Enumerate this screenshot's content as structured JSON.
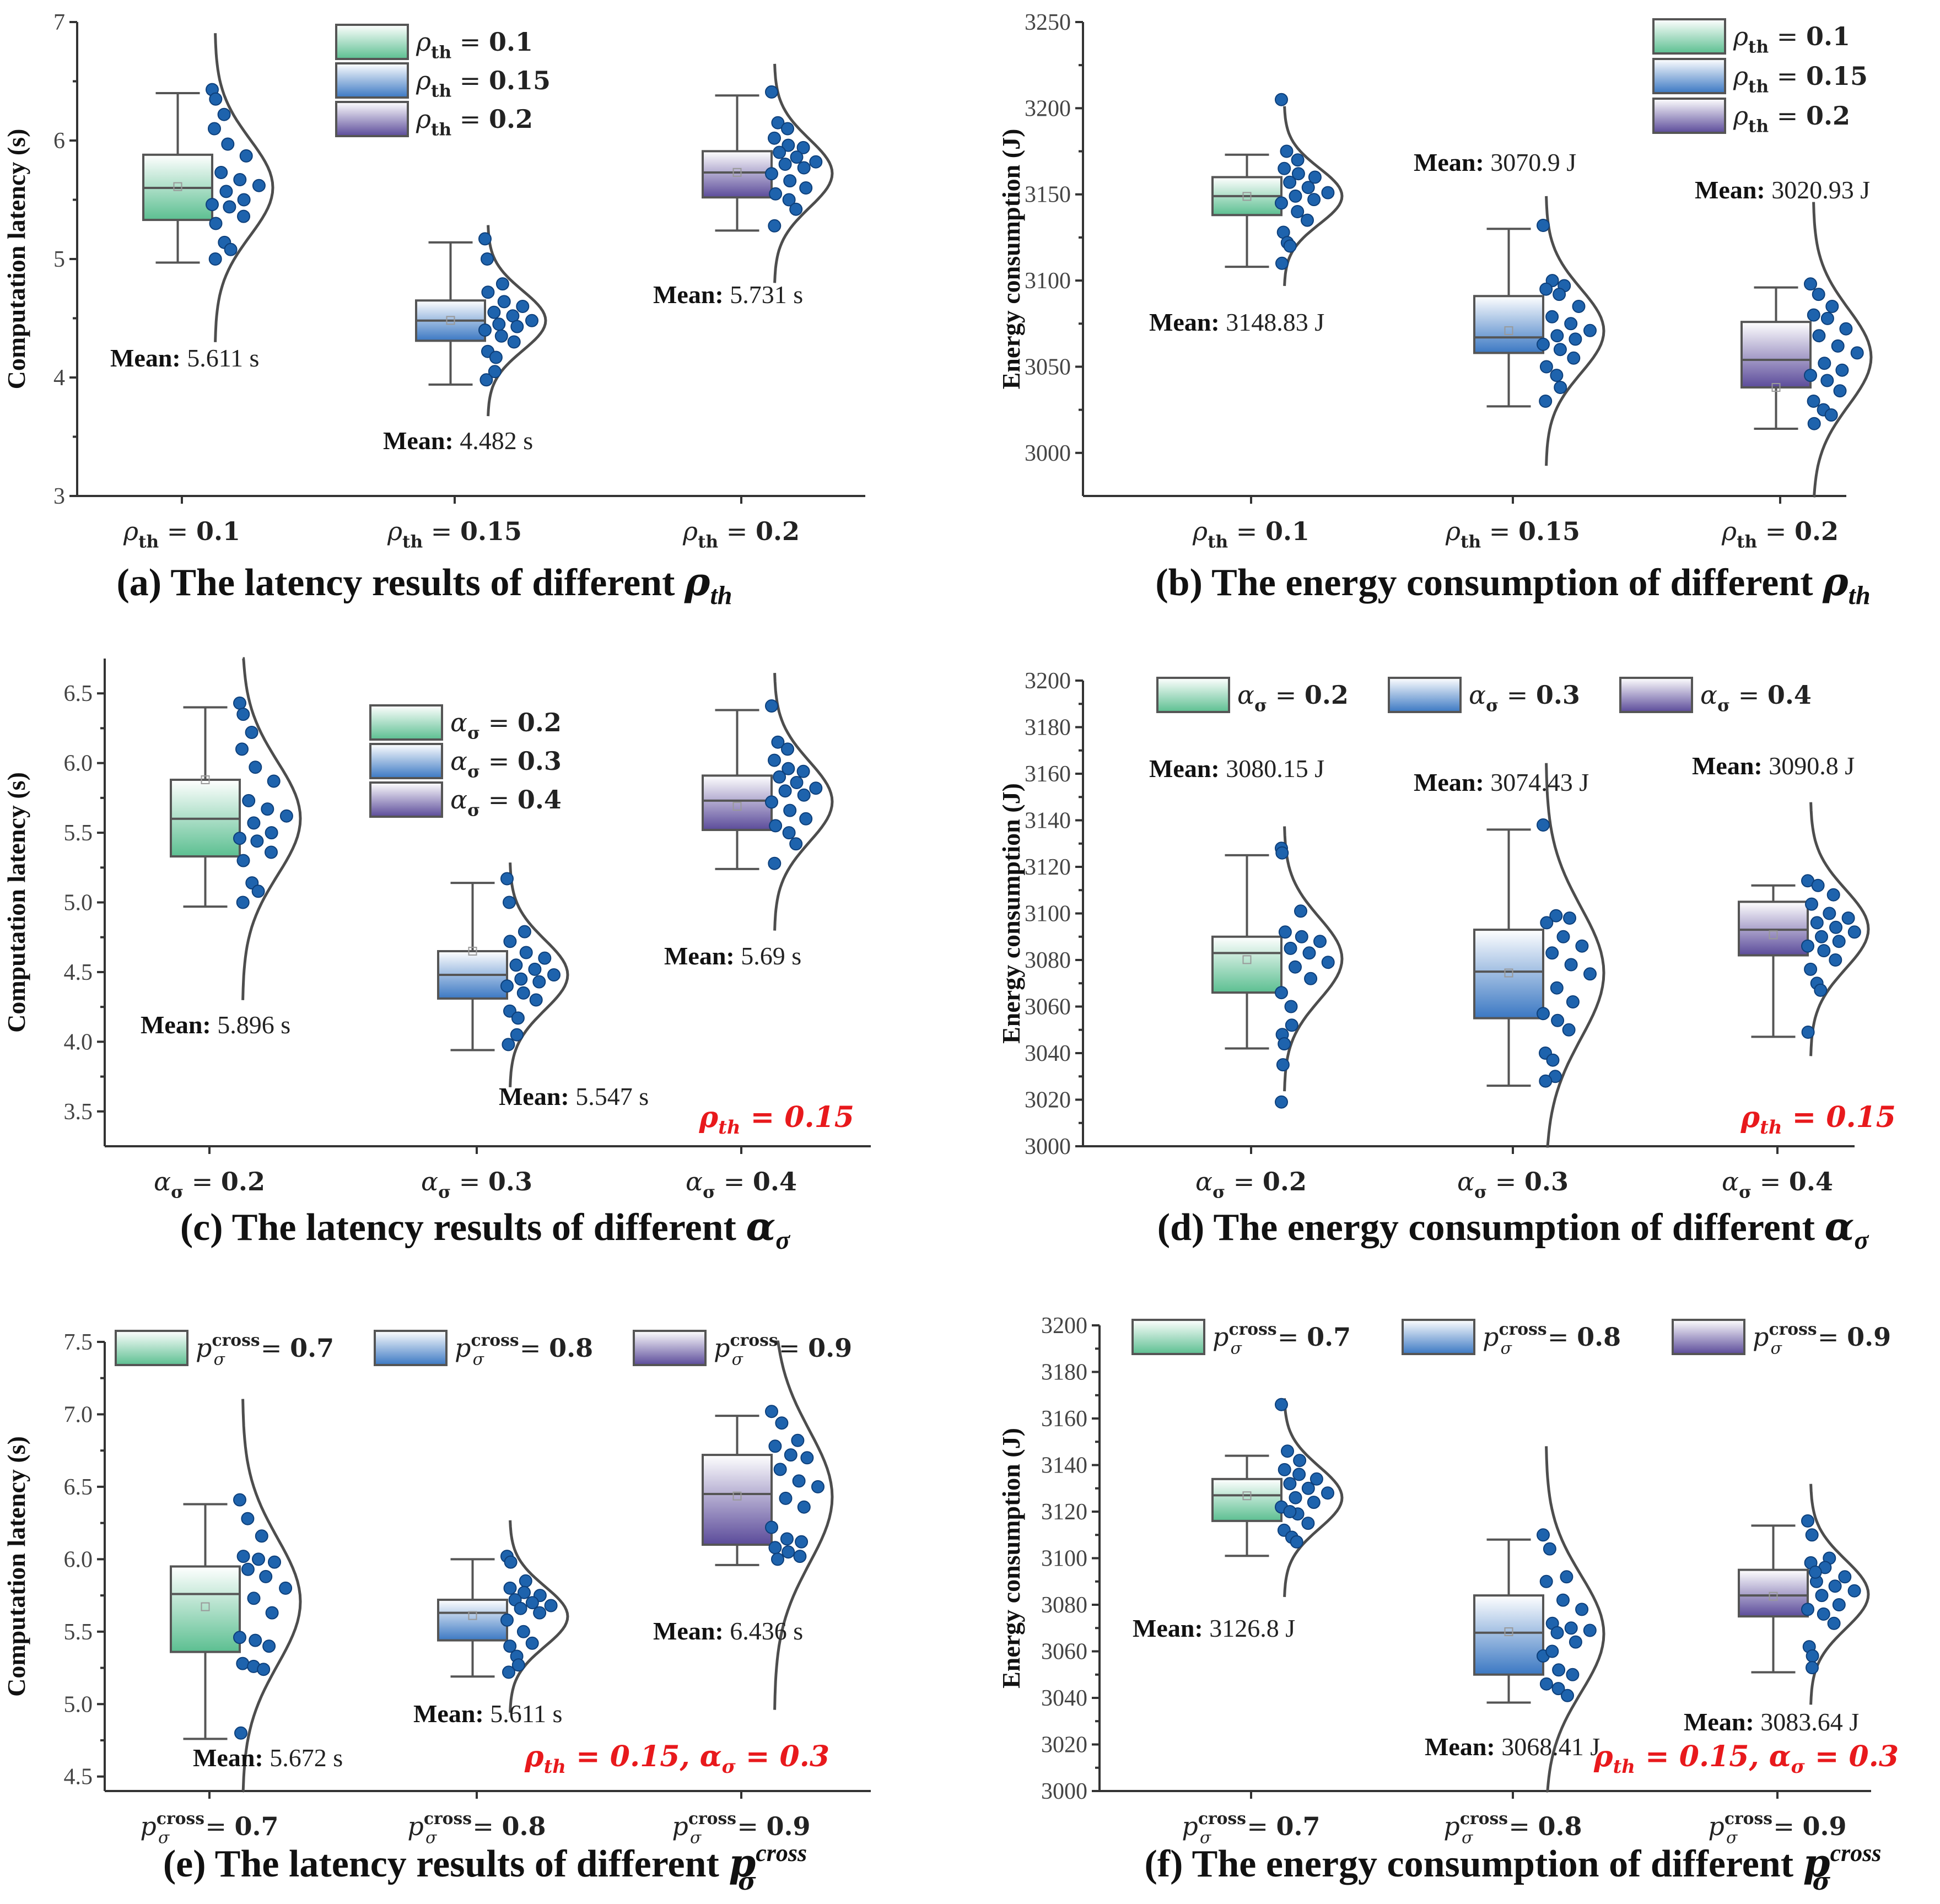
{
  "colors": {
    "green": "#5cbf91",
    "blue": "#3b78c3",
    "purple": "#5b4b9a",
    "dot": "#1e63ad",
    "annotation": "#e8191c"
  },
  "chart_data": [
    {
      "id": "a",
      "type": "box",
      "caption_prefix": "(a) The latency results of different ",
      "caption_math": "ρ",
      "caption_sub": "th",
      "ylabel": "Computation latency (s)",
      "ylim": [
        3,
        7
      ],
      "yticks": [
        3,
        4,
        5,
        6,
        7
      ],
      "ytick_labels": [
        "3",
        "4",
        "5",
        "6",
        "7"
      ],
      "categories": [
        {
          "sym": "ρ",
          "sub": "th",
          "sup": "",
          "value": "0.1",
          "color": "green"
        },
        {
          "sym": "ρ",
          "sub": "th",
          "sup": "",
          "value": "0.15",
          "color": "blue"
        },
        {
          "sym": "ρ",
          "sub": "th",
          "sup": "",
          "value": "0.2",
          "color": "purple"
        }
      ],
      "series": [
        {
          "name": "ρth = 0.1",
          "q1": 5.33,
          "median": 5.6,
          "q3": 5.88,
          "min": 4.97,
          "max": 6.4,
          "mean": 5.611,
          "points": [
            6.43,
            6.35,
            6.22,
            6.1,
            5.97,
            5.87,
            5.73,
            5.67,
            5.62,
            5.57,
            5.5,
            5.46,
            5.44,
            5.36,
            5.3,
            5.14,
            5.08,
            5.0
          ],
          "mean_text": "5.611 s"
        },
        {
          "name": "ρth = 0.15",
          "q1": 4.31,
          "median": 4.48,
          "q3": 4.65,
          "min": 3.94,
          "max": 5.14,
          "mean": 4.482,
          "points": [
            5.17,
            5.0,
            4.79,
            4.72,
            4.64,
            4.6,
            4.55,
            4.52,
            4.48,
            4.45,
            4.43,
            4.4,
            4.35,
            4.3,
            4.22,
            4.17,
            4.05,
            3.98
          ],
          "mean_text": "4.482 s"
        },
        {
          "name": "ρth = 0.2",
          "q1": 5.52,
          "median": 5.73,
          "q3": 5.91,
          "min": 5.24,
          "max": 6.38,
          "mean": 5.731,
          "points": [
            6.41,
            6.15,
            6.1,
            6.02,
            5.96,
            5.94,
            5.9,
            5.86,
            5.82,
            5.8,
            5.77,
            5.72,
            5.66,
            5.6,
            5.55,
            5.5,
            5.42,
            5.28
          ],
          "mean_text": "5.731 s"
        }
      ],
      "legend": [
        {
          "sym": "ρ",
          "sub": "th",
          "sup": "",
          "value": "0.1",
          "color": "green"
        },
        {
          "sym": "ρ",
          "sub": "th",
          "sup": "",
          "value": "0.15",
          "color": "blue"
        },
        {
          "sym": "ρ",
          "sub": "th",
          "sup": "",
          "value": "0.2",
          "color": "purple"
        }
      ],
      "annotation": ""
    },
    {
      "id": "b",
      "type": "box",
      "caption_prefix": "(b) The energy consumption of different ",
      "caption_math": "ρ",
      "caption_sub": "th",
      "ylabel": "Energy consumption (J)",
      "ylim": [
        2975,
        3250
      ],
      "yticks": [
        3000,
        3050,
        3100,
        3150,
        3200,
        3250
      ],
      "ytick_labels": [
        "3000",
        "3050",
        "3100",
        "3150",
        "3200",
        "3250"
      ],
      "categories": [
        {
          "sym": "ρ",
          "sub": "th",
          "sup": "",
          "value": "0.1",
          "color": "green"
        },
        {
          "sym": "ρ",
          "sub": "th",
          "sup": "",
          "value": "0.15",
          "color": "blue"
        },
        {
          "sym": "ρ",
          "sub": "th",
          "sup": "",
          "value": "0.2",
          "color": "purple"
        }
      ],
      "series": [
        {
          "name": "ρth = 0.1",
          "q1": 3138,
          "median": 3149,
          "q3": 3160,
          "min": 3108,
          "max": 3173,
          "mean": 3148.83,
          "points": [
            3205,
            3175,
            3170,
            3165,
            3162,
            3160,
            3157,
            3154,
            3151,
            3149,
            3147,
            3145,
            3140,
            3135,
            3128,
            3122,
            3120,
            3110
          ],
          "mean_text": "3148.83 J"
        },
        {
          "name": "ρth = 0.15",
          "q1": 3058,
          "median": 3067,
          "q3": 3091,
          "min": 3027,
          "max": 3130,
          "mean": 3070.9,
          "points": [
            3132,
            3100,
            3097,
            3095,
            3092,
            3085,
            3079,
            3075,
            3071,
            3068,
            3066,
            3063,
            3060,
            3055,
            3050,
            3045,
            3038,
            3030
          ],
          "mean_text": "3070.9 J"
        },
        {
          "name": "ρth = 0.2",
          "q1": 3038,
          "median": 3054,
          "q3": 3076,
          "min": 3014,
          "max": 3096,
          "mean": 3020.93,
          "points": [
            3098,
            3092,
            3085,
            3080,
            3078,
            3072,
            3068,
            3062,
            3058,
            3052,
            3048,
            3045,
            3042,
            3036,
            3030,
            3025,
            3022,
            3017
          ],
          "mean_text": "3020.93 J"
        }
      ],
      "legend": [
        {
          "sym": "ρ",
          "sub": "th",
          "sup": "",
          "value": "0.1",
          "color": "green"
        },
        {
          "sym": "ρ",
          "sub": "th",
          "sup": "",
          "value": "0.15",
          "color": "blue"
        },
        {
          "sym": "ρ",
          "sub": "th",
          "sup": "",
          "value": "0.2",
          "color": "purple"
        }
      ],
      "annotation": ""
    },
    {
      "id": "c",
      "type": "box",
      "caption_prefix": "(c) The latency results of different ",
      "caption_math": "α",
      "caption_sub": "σ",
      "ylabel": "Computation latency (s)",
      "ylim": [
        3.25,
        6.75
      ],
      "yticks": [
        3.5,
        4.0,
        4.5,
        5.0,
        5.5,
        6.0,
        6.5
      ],
      "ytick_labels": [
        "3.5",
        "4.0",
        "4.5",
        "5.0",
        "5.5",
        "6.0",
        "6.5"
      ],
      "categories": [
        {
          "sym": "α",
          "sub": "σ",
          "sup": "",
          "value": "0.2",
          "color": "green"
        },
        {
          "sym": "α",
          "sub": "σ",
          "sup": "",
          "value": "0.3",
          "color": "blue"
        },
        {
          "sym": "α",
          "sub": "σ",
          "sup": "",
          "value": "0.4",
          "color": "purple"
        }
      ],
      "series": [
        {
          "name": "ασ = 0.2",
          "q1": 5.33,
          "median": 5.6,
          "q3": 5.88,
          "min": 4.97,
          "max": 6.4,
          "mean": 5.896,
          "points": [
            6.43,
            6.35,
            6.22,
            6.1,
            5.97,
            5.87,
            5.73,
            5.67,
            5.62,
            5.57,
            5.5,
            5.46,
            5.44,
            5.36,
            5.3,
            5.14,
            5.08,
            5.0
          ],
          "mean_text": "5.896 s"
        },
        {
          "name": "ασ = 0.3",
          "q1": 4.31,
          "median": 4.48,
          "q3": 4.65,
          "min": 3.94,
          "max": 5.14,
          "mean": 5.547,
          "points": [
            5.17,
            5.0,
            4.79,
            4.72,
            4.64,
            4.6,
            4.55,
            4.52,
            4.48,
            4.45,
            4.43,
            4.4,
            4.35,
            4.3,
            4.22,
            4.17,
            4.05,
            3.98
          ],
          "mean_text": "5.547 s"
        },
        {
          "name": "ασ = 0.4",
          "q1": 5.52,
          "median": 5.73,
          "q3": 5.91,
          "min": 5.24,
          "max": 6.38,
          "mean": 5.69,
          "points": [
            6.41,
            6.15,
            6.1,
            6.02,
            5.96,
            5.94,
            5.9,
            5.86,
            5.82,
            5.8,
            5.77,
            5.72,
            5.66,
            5.6,
            5.55,
            5.5,
            5.42,
            5.28
          ],
          "mean_text": "5.69 s"
        }
      ],
      "legend": [
        {
          "sym": "α",
          "sub": "σ",
          "sup": "",
          "value": "0.2",
          "color": "green"
        },
        {
          "sym": "α",
          "sub": "σ",
          "sup": "",
          "value": "0.3",
          "color": "blue"
        },
        {
          "sym": "α",
          "sub": "σ",
          "sup": "",
          "value": "0.4",
          "color": "purple"
        }
      ],
      "annotation": "ρ<sub>th</sub> = 0.15"
    },
    {
      "id": "d",
      "type": "box",
      "caption_prefix": "(d) The energy consumption of different ",
      "caption_math": "α",
      "caption_sub": "σ",
      "ylabel": "Energy consumption (J)",
      "ylim": [
        3000,
        3200
      ],
      "yticks": [
        3000,
        3020,
        3040,
        3060,
        3080,
        3100,
        3120,
        3140,
        3160,
        3180,
        3200
      ],
      "ytick_labels": [
        "3000",
        "3020",
        "3040",
        "3060",
        "3080",
        "3100",
        "3120",
        "3140",
        "3160",
        "3180",
        "3200"
      ],
      "categories": [
        {
          "sym": "α",
          "sub": "σ",
          "sup": "",
          "value": "0.2",
          "color": "green"
        },
        {
          "sym": "α",
          "sub": "σ",
          "sup": "",
          "value": "0.3",
          "color": "blue"
        },
        {
          "sym": "α",
          "sub": "σ",
          "sup": "",
          "value": "0.4",
          "color": "purple"
        }
      ],
      "series": [
        {
          "name": "ασ = 0.2",
          "q1": 3066,
          "median": 3083,
          "q3": 3090,
          "min": 3042,
          "max": 3125,
          "mean": 3080.15,
          "points": [
            3128,
            3126,
            3101,
            3092,
            3090,
            3088,
            3085,
            3083,
            3079,
            3077,
            3072,
            3066,
            3060,
            3052,
            3048,
            3044,
            3035,
            3019
          ],
          "mean_text": "3080.15 J"
        },
        {
          "name": "ασ = 0.3",
          "q1": 3055,
          "median": 3075,
          "q3": 3093,
          "min": 3026,
          "max": 3136,
          "mean": 3074.43,
          "points": [
            3138,
            3099,
            3098,
            3096,
            3090,
            3086,
            3083,
            3078,
            3074,
            3068,
            3062,
            3057,
            3054,
            3050,
            3040,
            3037,
            3030,
            3028
          ],
          "mean_text": "3074.43 J"
        },
        {
          "name": "ασ = 0.4",
          "q1": 3082,
          "median": 3093,
          "q3": 3105,
          "min": 3047,
          "max": 3112,
          "mean": 3090.8,
          "points": [
            3114,
            3112,
            3108,
            3104,
            3100,
            3098,
            3096,
            3094,
            3092,
            3090,
            3088,
            3086,
            3084,
            3080,
            3076,
            3070,
            3067,
            3049
          ],
          "mean_text": "3090.8 J"
        }
      ],
      "legend": [
        {
          "sym": "α",
          "sub": "σ",
          "sup": "",
          "value": "0.2",
          "color": "green"
        },
        {
          "sym": "α",
          "sub": "σ",
          "sup": "",
          "value": "0.3",
          "color": "blue"
        },
        {
          "sym": "α",
          "sub": "σ",
          "sup": "",
          "value": "0.4",
          "color": "purple"
        }
      ],
      "annotation": "ρ<sub>th</sub> = 0.15"
    },
    {
      "id": "e",
      "type": "box",
      "caption_prefix": "(e) The latency results of different ",
      "caption_math": "p",
      "caption_sub": "σ",
      "caption_sup": "cross",
      "ylabel": "Computation latency (s)",
      "ylim": [
        4.4,
        7.5
      ],
      "yticks": [
        4.5,
        5.0,
        5.5,
        6.0,
        6.5,
        7.0,
        7.5
      ],
      "ytick_labels": [
        "4.5",
        "5.0",
        "5.5",
        "6.0",
        "6.5",
        "7.0",
        "7.5"
      ],
      "categories": [
        {
          "sym": "p",
          "sub": "σ",
          "sup": "cross",
          "value": "0.7",
          "color": "green"
        },
        {
          "sym": "p",
          "sub": "σ",
          "sup": "cross",
          "value": "0.8",
          "color": "blue"
        },
        {
          "sym": "p",
          "sub": "σ",
          "sup": "cross",
          "value": "0.9",
          "color": "purple"
        }
      ],
      "series": [
        {
          "name": "pσcross = 0.7",
          "q1": 5.36,
          "median": 5.76,
          "q3": 5.95,
          "min": 4.76,
          "max": 6.38,
          "mean": 5.672,
          "points": [
            6.41,
            6.28,
            6.16,
            6.02,
            6.0,
            5.98,
            5.93,
            5.88,
            5.8,
            5.73,
            5.63,
            5.46,
            5.44,
            5.4,
            5.28,
            5.26,
            5.24,
            4.8
          ],
          "mean_text": "5.672 s"
        },
        {
          "name": "pσcross = 0.8",
          "q1": 5.44,
          "median": 5.63,
          "q3": 5.72,
          "min": 5.19,
          "max": 6.0,
          "mean": 5.611,
          "points": [
            6.02,
            5.98,
            5.85,
            5.8,
            5.77,
            5.75,
            5.72,
            5.7,
            5.68,
            5.66,
            5.63,
            5.58,
            5.5,
            5.42,
            5.4,
            5.33,
            5.27,
            5.22
          ],
          "mean_text": "5.611 s"
        },
        {
          "name": "pσcross = 0.9",
          "q1": 6.1,
          "median": 6.45,
          "q3": 6.72,
          "min": 5.96,
          "max": 6.99,
          "mean": 6.436,
          "points": [
            7.02,
            6.94,
            6.82,
            6.78,
            6.72,
            6.7,
            6.62,
            6.54,
            6.5,
            6.42,
            6.36,
            6.22,
            6.14,
            6.12,
            6.08,
            6.05,
            6.02,
            6.0
          ],
          "mean_text": "6.436 s"
        }
      ],
      "legend": [
        {
          "sym": "p",
          "sub": "σ",
          "sup": "cross",
          "value": "0.7",
          "color": "green"
        },
        {
          "sym": "p",
          "sub": "σ",
          "sup": "cross",
          "value": "0.8",
          "color": "blue"
        },
        {
          "sym": "p",
          "sub": "σ",
          "sup": "cross",
          "value": "0.9",
          "color": "purple"
        }
      ],
      "annotation": "ρ<sub>th</sub> = 0.15, α<sub>σ</sub> = 0.3"
    },
    {
      "id": "f",
      "type": "box",
      "caption_prefix": "(f) The energy consumption of different ",
      "caption_math": "p",
      "caption_sub": "σ",
      "caption_sup": "cross",
      "ylabel": "Energy consumption (J)",
      "ylim": [
        3000,
        3200
      ],
      "yticks": [
        3000,
        3020,
        3040,
        3060,
        3080,
        3100,
        3120,
        3140,
        3160,
        3180,
        3200
      ],
      "ytick_labels": [
        "3000",
        "3020",
        "3040",
        "3060",
        "3080",
        "3100",
        "3120",
        "3140",
        "3160",
        "3180",
        "3200"
      ],
      "categories": [
        {
          "sym": "p",
          "sub": "σ",
          "sup": "cross",
          "value": "0.7",
          "color": "green"
        },
        {
          "sym": "p",
          "sub": "σ",
          "sup": "cross",
          "value": "0.8",
          "color": "blue"
        },
        {
          "sym": "p",
          "sub": "σ",
          "sup": "cross",
          "value": "0.9",
          "color": "purple"
        }
      ],
      "series": [
        {
          "name": "pσcross = 0.7",
          "q1": 3116,
          "median": 3127,
          "q3": 3134,
          "min": 3101,
          "max": 3144,
          "mean": 3126.8,
          "points": [
            3166,
            3146,
            3142,
            3138,
            3136,
            3134,
            3132,
            3130,
            3128,
            3126,
            3124,
            3122,
            3119,
            3115,
            3112,
            3109,
            3107,
            3120
          ],
          "mean_text": "3126.8 J"
        },
        {
          "name": "pσcross = 0.8",
          "q1": 3050,
          "median": 3068,
          "q3": 3084,
          "min": 3038,
          "max": 3108,
          "mean": 3068.41,
          "points": [
            3110,
            3104,
            3092,
            3090,
            3082,
            3078,
            3072,
            3070,
            3069,
            3068,
            3064,
            3058,
            3052,
            3050,
            3046,
            3044,
            3041,
            3060
          ],
          "mean_text": "3068.41 J"
        },
        {
          "name": "pσcross = 0.9",
          "q1": 3075,
          "median": 3084,
          "q3": 3095,
          "min": 3051,
          "max": 3114,
          "mean": 3083.64,
          "points": [
            3116,
            3110,
            3100,
            3098,
            3096,
            3092,
            3090,
            3088,
            3086,
            3084,
            3080,
            3078,
            3076,
            3072,
            3062,
            3058,
            3053,
            3094
          ],
          "mean_text": "3083.64 J"
        }
      ],
      "legend": [
        {
          "sym": "p",
          "sub": "σ",
          "sup": "cross",
          "value": "0.7",
          "color": "green"
        },
        {
          "sym": "p",
          "sub": "σ",
          "sup": "cross",
          "value": "0.8",
          "color": "blue"
        },
        {
          "sym": "p",
          "sub": "σ",
          "sup": "cross",
          "value": "0.9",
          "color": "purple"
        }
      ],
      "annotation": "ρ<sub>th</sub> = 0.15, α<sub>σ</sub> = 0.3"
    }
  ],
  "mean_prefix": "Mean:"
}
